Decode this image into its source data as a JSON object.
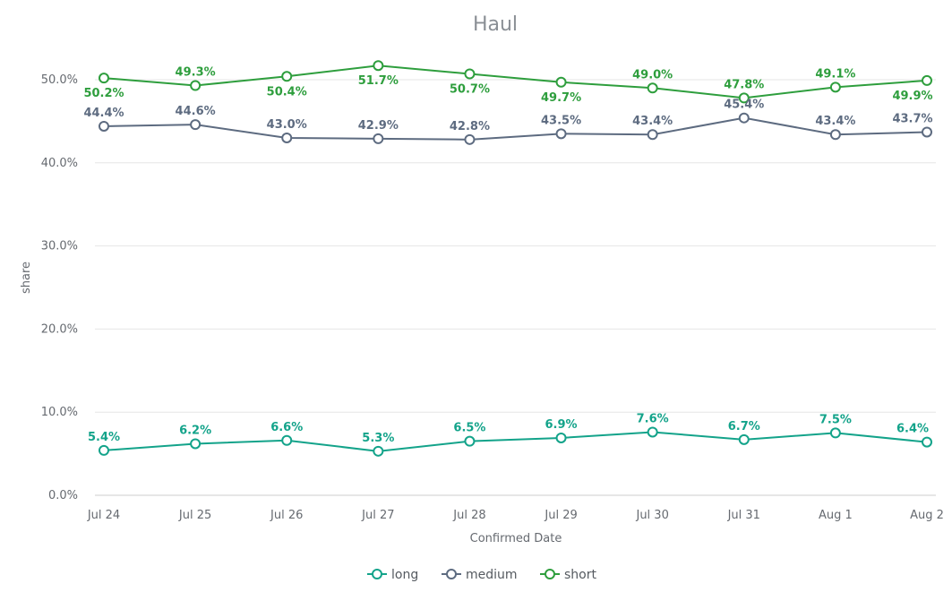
{
  "chart_data": {
    "type": "line",
    "title": "Haul",
    "xlabel": "Confirmed Date",
    "ylabel": "share",
    "categories": [
      "Jul 24",
      "Jul 25",
      "Jul 26",
      "Jul 27",
      "Jul 28",
      "Jul 29",
      "Jul 30",
      "Jul 31",
      "Aug 1",
      "Aug 2"
    ],
    "y_ticks": [
      "0.0%",
      "10.0%",
      "20.0%",
      "30.0%",
      "40.0%",
      "50.0%"
    ],
    "ylim": [
      0,
      50
    ],
    "y_unit": "%",
    "grid": true,
    "legend_position": "bottom-center",
    "series": [
      {
        "name": "long",
        "color": "#13a38a",
        "values": [
          5.4,
          6.2,
          6.6,
          5.3,
          6.5,
          6.9,
          7.6,
          6.7,
          7.5,
          6.4
        ],
        "labels": [
          "5.4%",
          "6.2%",
          "6.6%",
          "5.3%",
          "6.5%",
          "6.9%",
          "7.6%",
          "6.7%",
          "7.5%",
          "6.4%"
        ]
      },
      {
        "name": "medium",
        "color": "#5d6b80",
        "values": [
          44.4,
          44.6,
          43.0,
          42.9,
          42.8,
          43.5,
          43.4,
          45.4,
          43.4,
          43.7
        ],
        "labels": [
          "44.4%",
          "44.6%",
          "43.0%",
          "42.9%",
          "42.8%",
          "43.5%",
          "43.4%",
          "45.4%",
          "43.4%",
          "43.7%"
        ]
      },
      {
        "name": "short",
        "color": "#2e9e3d",
        "values": [
          50.2,
          49.3,
          50.4,
          51.7,
          50.7,
          49.7,
          49.0,
          47.8,
          49.1,
          49.9
        ],
        "labels": [
          "50.2%",
          "49.3%",
          "50.4%",
          "51.7%",
          "50.7%",
          "49.7%",
          "49.0%",
          "47.8%",
          "49.1%",
          "49.9%"
        ]
      }
    ]
  }
}
